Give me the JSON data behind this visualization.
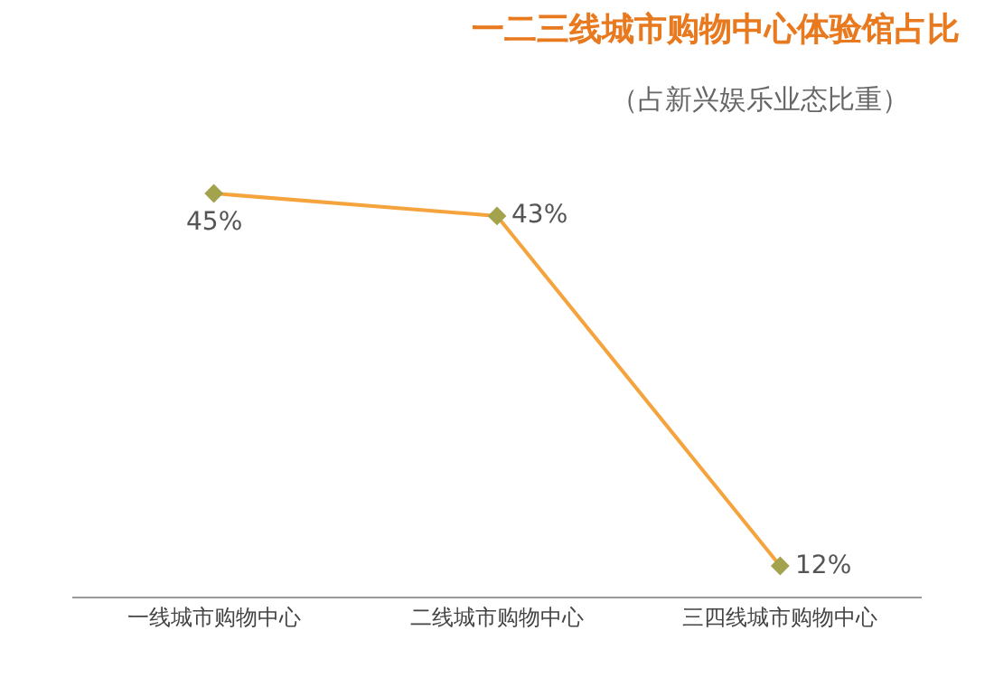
{
  "chart_data": {
    "type": "line",
    "title": "一二三线城市购物中心体验馆占比",
    "subtitle": "（占新兴娱乐业态比重）",
    "categories": [
      "一线城市购物中心",
      "二线城市购物中心",
      "三四线城市购物中心"
    ],
    "series": [
      {
        "color": "#f5a33c",
        "values": [
          45,
          43,
          12
        ],
        "value_labels": [
          "45%",
          "43%",
          "12%"
        ]
      }
    ],
    "marker": "diamond",
    "line_style": "solid",
    "grid": false
  }
}
